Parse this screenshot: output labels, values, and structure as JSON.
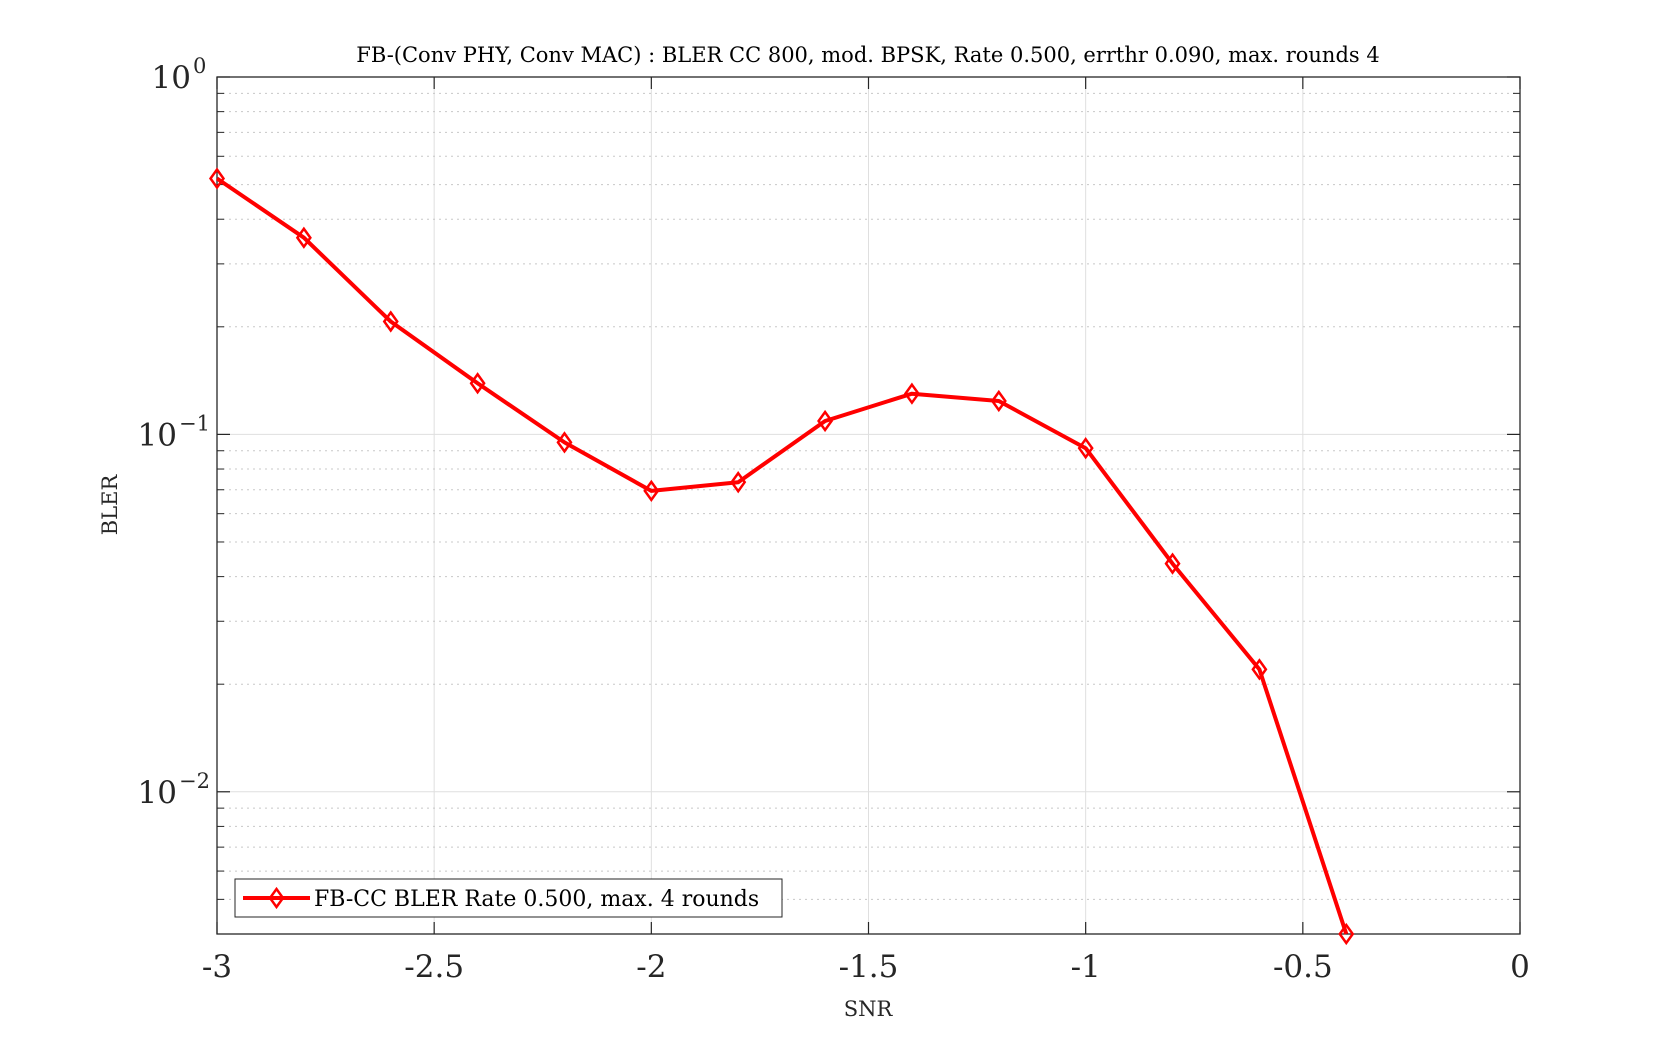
{
  "chart_data": {
    "type": "line",
    "title": "FB-(Conv PHY, Conv MAC) : BLER CC 800, mod. BPSK, Rate 0.500, errthr 0.090, max. rounds 4",
    "xlabel": "SNR",
    "ylabel": "BLER",
    "xlim": [
      -3,
      0
    ],
    "ylim": [
      0.004,
      1
    ],
    "yscale": "log",
    "grid": true,
    "legend_position": "bottom-left",
    "xticks": [
      {
        "value": -3,
        "label": "-3"
      },
      {
        "value": -2.5,
        "label": "-2.5"
      },
      {
        "value": -2,
        "label": "-2"
      },
      {
        "value": -1.5,
        "label": "-1.5"
      },
      {
        "value": -1,
        "label": "-1"
      },
      {
        "value": -0.5,
        "label": "-0.5"
      },
      {
        "value": 0,
        "label": "0"
      }
    ],
    "yticks": [
      {
        "value": 1,
        "base": "10",
        "exp": "0"
      },
      {
        "value": 0.1,
        "base": "10",
        "exp": "−1"
      },
      {
        "value": 0.01,
        "base": "10",
        "exp": "−2"
      }
    ],
    "series": [
      {
        "name": "FB-CC BLER Rate 0.500, max. 4 rounds",
        "color": "#ff0000",
        "marker": "diamond",
        "x": [
          -3.0,
          -2.8,
          -2.6,
          -2.4,
          -2.2,
          -2.0,
          -1.8,
          -1.6,
          -1.4,
          -1.2,
          -1.0,
          -0.8,
          -0.6,
          -0.4
        ],
        "y": [
          0.52,
          0.355,
          0.207,
          0.139,
          0.095,
          0.0695,
          0.0735,
          0.109,
          0.13,
          0.124,
          0.0915,
          0.0435,
          0.022,
          0.004
        ]
      }
    ]
  }
}
